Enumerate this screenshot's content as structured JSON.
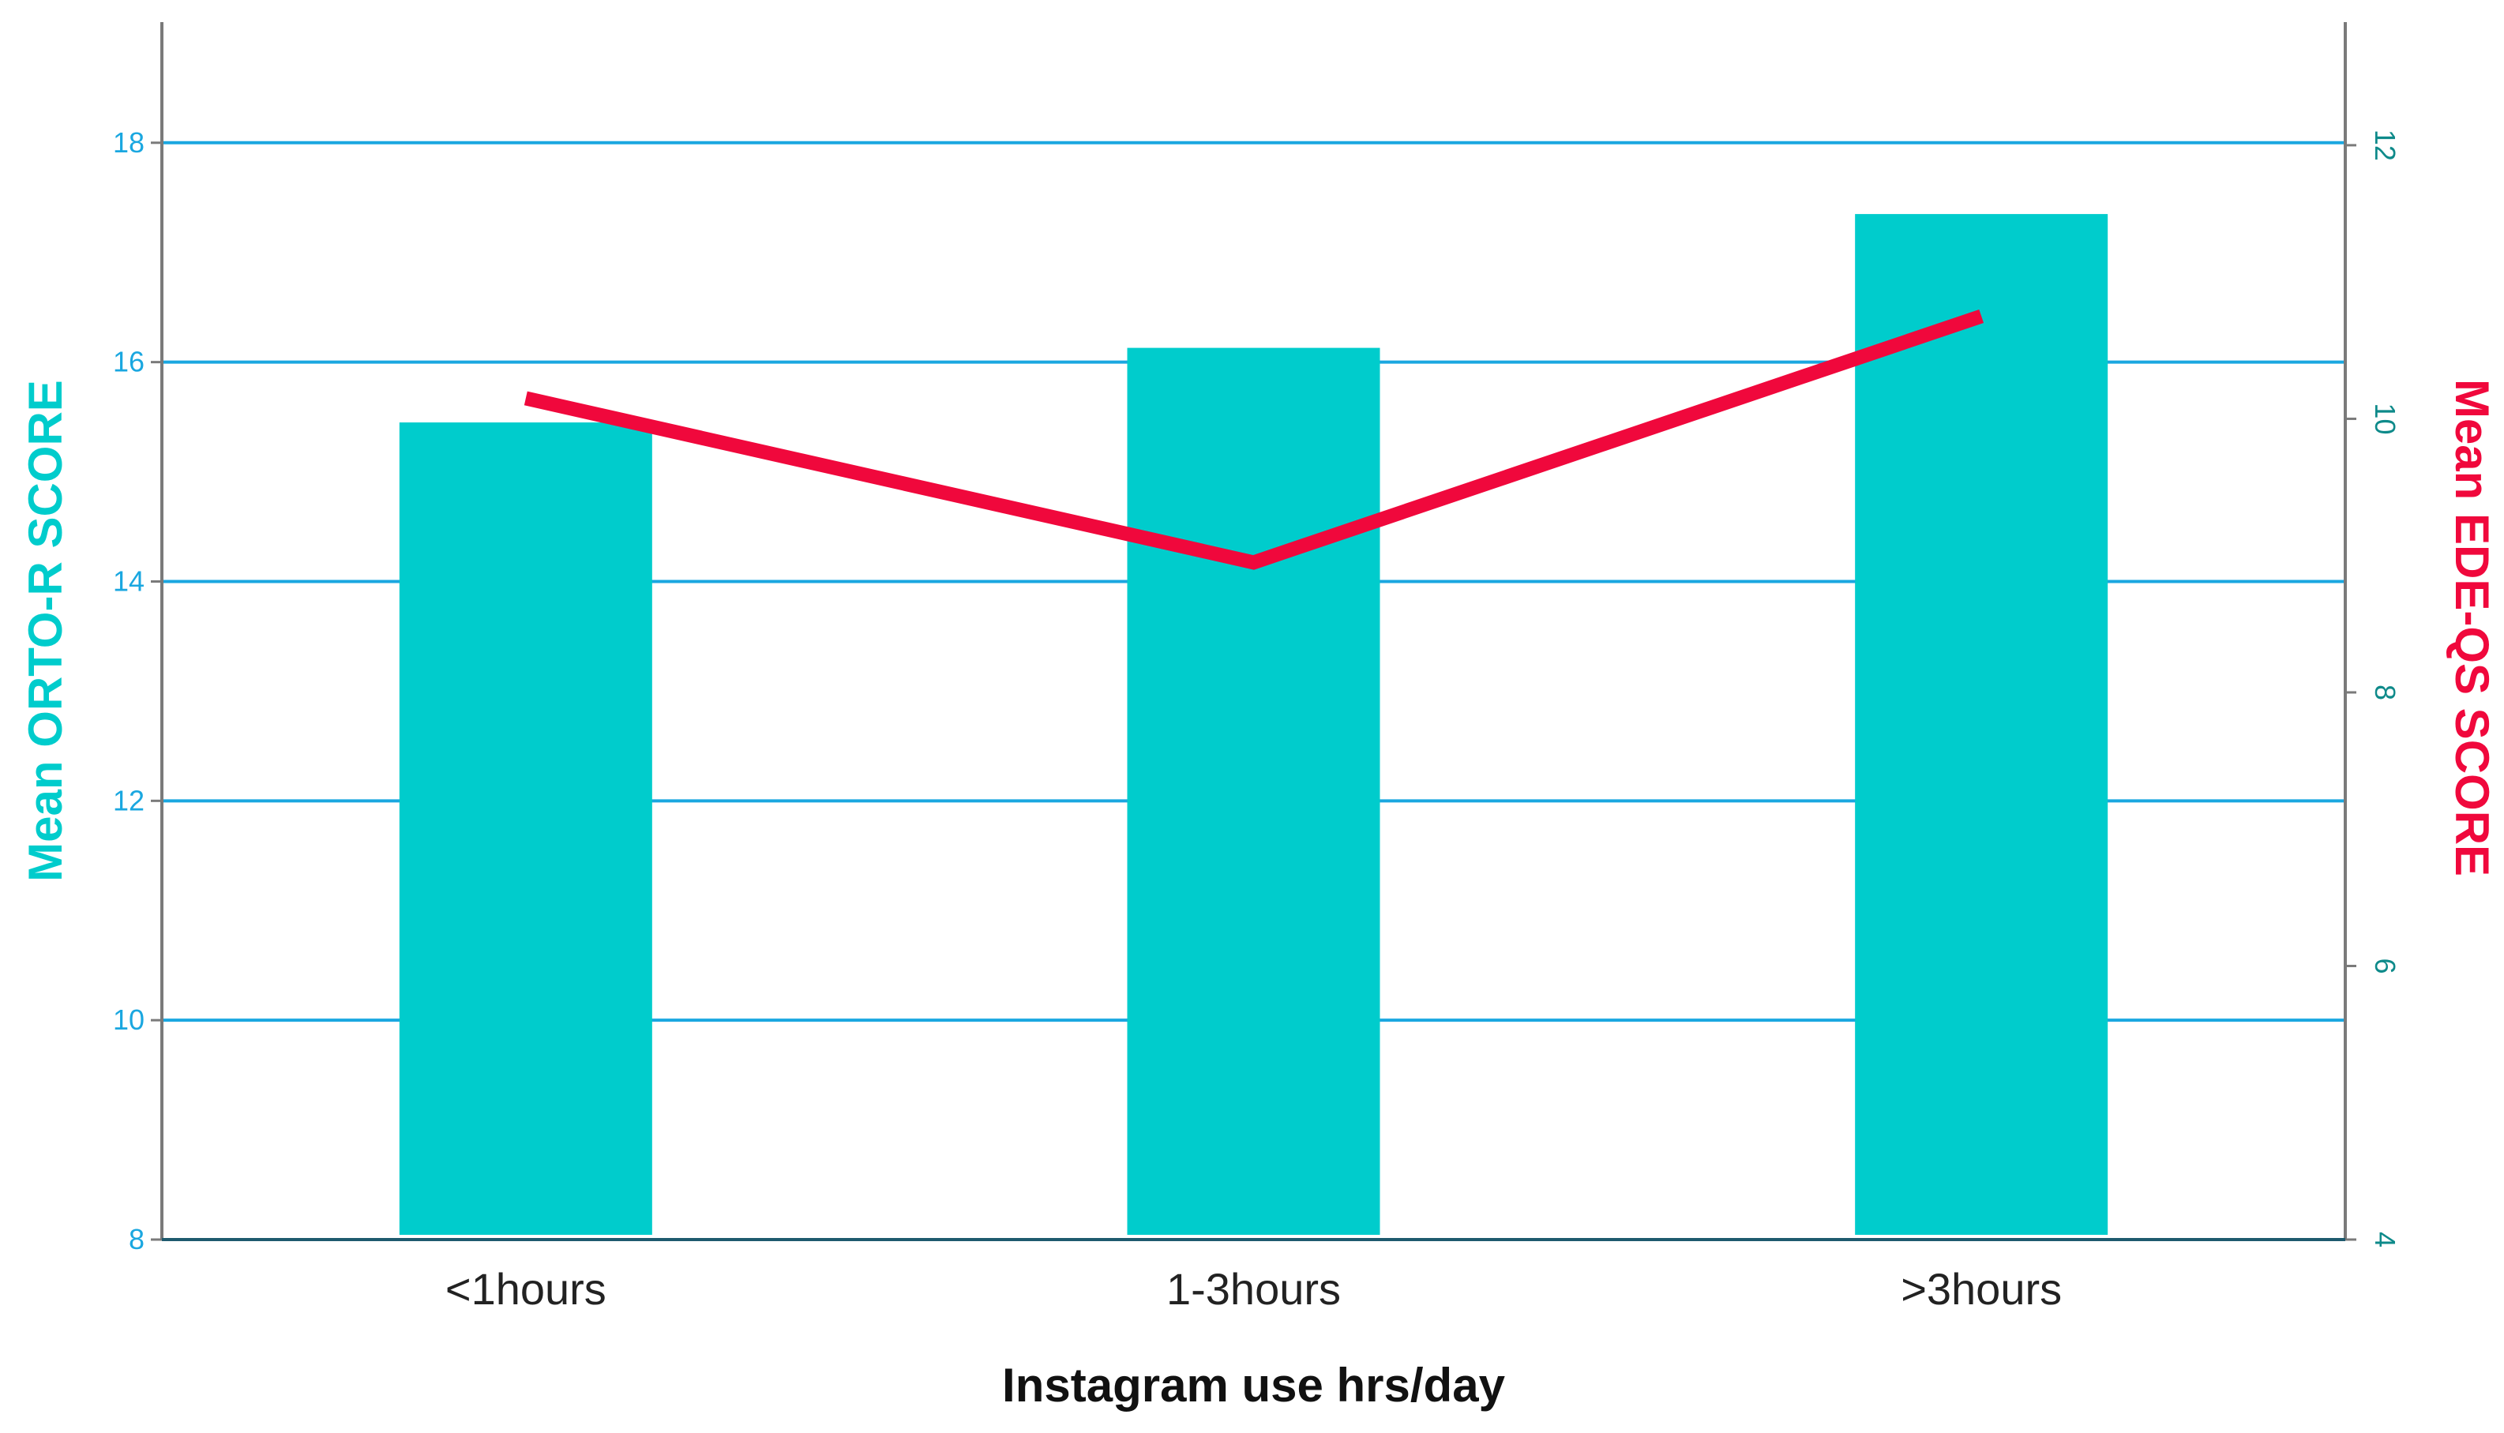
{
  "chart_data": {
    "type": "bar+line",
    "title": "",
    "xlabel": "Instagram use hrs/day",
    "categories": [
      "<1hours",
      "1-3hours",
      ">3hours"
    ],
    "series": [
      {
        "name": "Mean ORTO-R SCORE",
        "type": "bar",
        "axis": "left",
        "values": [
          15.45,
          16.13,
          17.35
        ],
        "color": "#00cccc"
      },
      {
        "name": "Mean EDE-QS SCORE",
        "type": "line",
        "axis": "right",
        "values": [
          10.15,
          8.95,
          10.75
        ],
        "color": "#f0083c"
      }
    ],
    "y_left": {
      "label": "Mean ORTO-R SCORE",
      "ylim": [
        8,
        19.1
      ],
      "ticks": [
        8,
        10,
        12,
        14,
        16,
        18
      ],
      "color": "#00cccc",
      "tick_color": "#1aa7e0"
    },
    "y_right": {
      "label": "Mean EDE-QS SCORE",
      "ylim": [
        4,
        12.9
      ],
      "ticks": [
        4,
        6,
        8,
        10,
        12
      ],
      "color": "#f0083c",
      "tick_color": "#0e8a8a"
    },
    "grid": true,
    "grid_color": "#1aa7e0",
    "legend": "none"
  }
}
